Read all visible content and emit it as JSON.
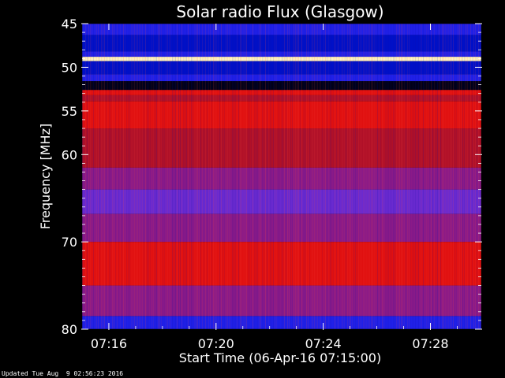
{
  "chart_data": {
    "type": "heatmap",
    "title": "Solar radio Flux (Glasgow)",
    "xlabel": "Start Time (06-Apr-16 07:15:00)",
    "ylabel": "Frequency [MHz]",
    "footer": "Updated Tue Aug  9 02:56:23 2016",
    "x_ticks": [
      "07:16",
      "07:20",
      "07:24",
      "07:28"
    ],
    "x_tick_minutes": [
      1,
      5,
      9,
      13
    ],
    "xlim_minutes": [
      0,
      14.9
    ],
    "y_ticks": [
      45,
      50,
      55,
      60,
      70,
      80
    ],
    "ylim": [
      45,
      80
    ],
    "bands": [
      {
        "from": 45,
        "to": 46.3,
        "level": "blue"
      },
      {
        "from": 46.3,
        "to": 48.2,
        "level": "deep-blue"
      },
      {
        "from": 48.2,
        "to": 48.8,
        "level": "blue"
      },
      {
        "from": 48.8,
        "to": 49.3,
        "level": "saturated"
      },
      {
        "from": 49.3,
        "to": 50.8,
        "level": "deep-blue"
      },
      {
        "from": 50.8,
        "to": 51.6,
        "level": "blue"
      },
      {
        "from": 51.6,
        "to": 52.6,
        "level": "black"
      },
      {
        "from": 52.6,
        "to": 53.2,
        "level": "red"
      },
      {
        "from": 53.2,
        "to": 53.9,
        "level": "dark-red"
      },
      {
        "from": 53.9,
        "to": 57.0,
        "level": "red"
      },
      {
        "from": 57.0,
        "to": 61.5,
        "level": "dark-red"
      },
      {
        "from": 61.5,
        "to": 64.0,
        "level": "purple"
      },
      {
        "from": 64.0,
        "to": 66.8,
        "level": "violet"
      },
      {
        "from": 66.8,
        "to": 70.0,
        "level": "purple"
      },
      {
        "from": 70.0,
        "to": 75.0,
        "level": "red"
      },
      {
        "from": 75.0,
        "to": 78.5,
        "level": "purple"
      },
      {
        "from": 78.5,
        "to": 80.0,
        "level": "blue"
      }
    ],
    "level_colors": {
      "black": "#000018",
      "deep-blue": "#0010c8",
      "blue": "#2020e8",
      "violet": "#6a2ad0",
      "purple": "#8a1a88",
      "dark-red": "#b01028",
      "red": "#e01010",
      "saturated": "#fff4c0"
    }
  }
}
